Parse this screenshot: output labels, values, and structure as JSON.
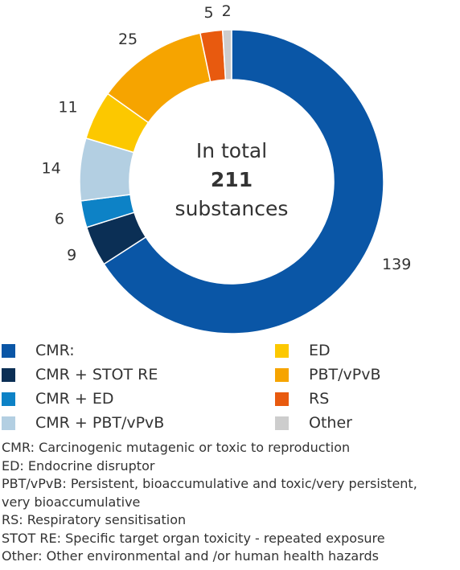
{
  "chart_data": {
    "type": "pie",
    "variant": "donut",
    "center_text": {
      "line1": "In total",
      "line2": "211",
      "line3": "substances"
    },
    "slices": [
      {
        "label": "CMR:",
        "value": 139,
        "color": "#0a56a6"
      },
      {
        "label": "CMR + STOT RE",
        "value": 9,
        "color": "#0b2f55"
      },
      {
        "label": "CMR + ED",
        "value": 6,
        "color": "#0d82c6"
      },
      {
        "label": "CMR + PBT/vPvB",
        "value": 14,
        "color": "#b3cfe2"
      },
      {
        "label": "ED",
        "value": 11,
        "color": "#fcc800"
      },
      {
        "label": "PBT/vPvB",
        "value": 25,
        "color": "#f6a400"
      },
      {
        "label": "RS",
        "value": 5,
        "color": "#e85a0f"
      },
      {
        "label": "Other",
        "value": 2,
        "color": "#cdcdcd"
      }
    ],
    "legend_placement": "bottom"
  },
  "notes": [
    "CMR: Carcinogenic mutagenic or toxic to reproduction",
    "ED: Endocrine disruptor",
    "PBT/vPvB: Persistent, bioaccumulative and toxic/very persistent,",
    "very bioaccumulative",
    "RS: Respiratory sensitisation",
    "STOT RE: Specific target organ toxicity - repeated exposure",
    "Other: Other environmental and /or human health hazards"
  ]
}
